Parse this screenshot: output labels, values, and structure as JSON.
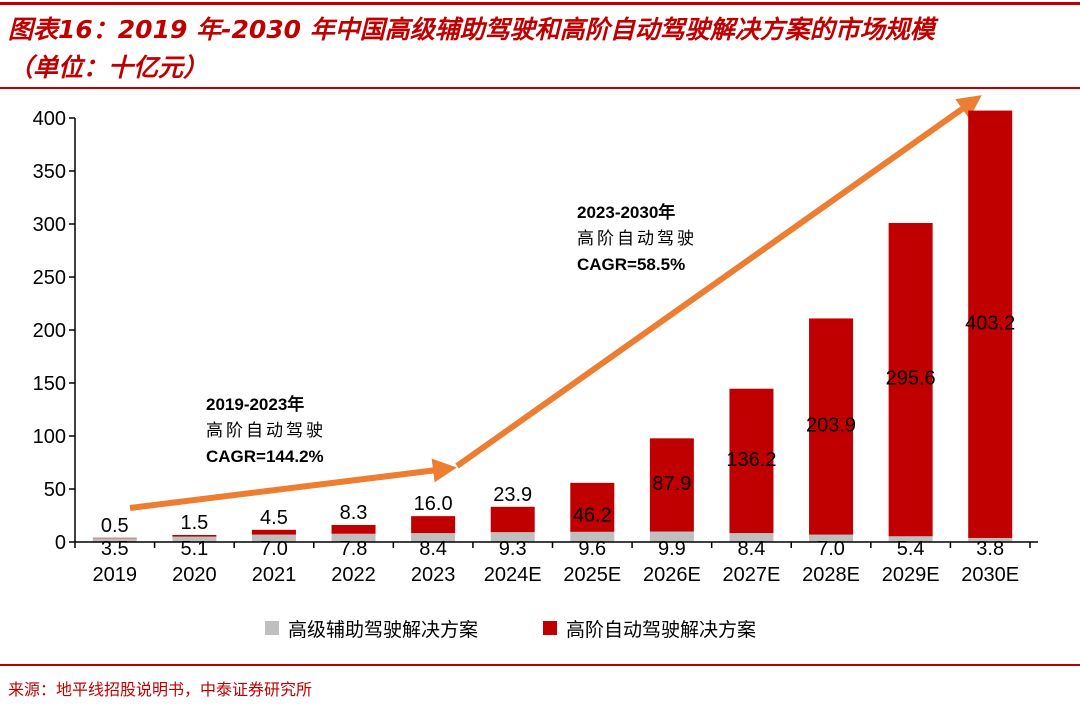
{
  "title": "图表16：2019 年-2030 年中国高级辅助驾驶和高阶自动驾驶解决方案的市场规模",
  "subtitle": "（单位：十亿元）",
  "source": "来源：地平线招股说明书，中泰证券研究所",
  "colors": {
    "series_gray": "#bfbfbf",
    "series_red": "#c00000",
    "arrow": "#ed7d31",
    "accent": "#c00000"
  },
  "chart_data": {
    "type": "bar",
    "stacked": true,
    "title": "2019 年-2030 年中国高级辅助驾驶和高阶自动驾驶解决方案的市场规模",
    "ylabel": "十亿元",
    "ylim": [
      0,
      400
    ],
    "yticks": [
      0,
      50,
      100,
      150,
      200,
      250,
      300,
      350,
      400
    ],
    "categories": [
      "2019",
      "2020",
      "2021",
      "2022",
      "2023",
      "2024E",
      "2025E",
      "2026E",
      "2027E",
      "2028E",
      "2029E",
      "2030E"
    ],
    "series": [
      {
        "name": "高级辅助驾驶解决方案",
        "values": [
          3.5,
          5.1,
          7.0,
          7.8,
          8.4,
          9.3,
          9.6,
          9.9,
          8.4,
          7.0,
          5.4,
          3.8
        ]
      },
      {
        "name": "高阶自动驾驶解决方案",
        "values": [
          0.5,
          1.5,
          4.5,
          8.3,
          16.0,
          23.9,
          46.2,
          87.9,
          136.2,
          203.9,
          295.6,
          403.2
        ]
      }
    ],
    "legend_position": "bottom",
    "annotations": [
      {
        "lines": [
          "2019-2023年",
          "高阶自动驾驶",
          "CAGR=144.2%"
        ]
      },
      {
        "lines": [
          "2023-2030年",
          "高阶自动驾驶",
          "CAGR=58.5%"
        ]
      }
    ]
  }
}
